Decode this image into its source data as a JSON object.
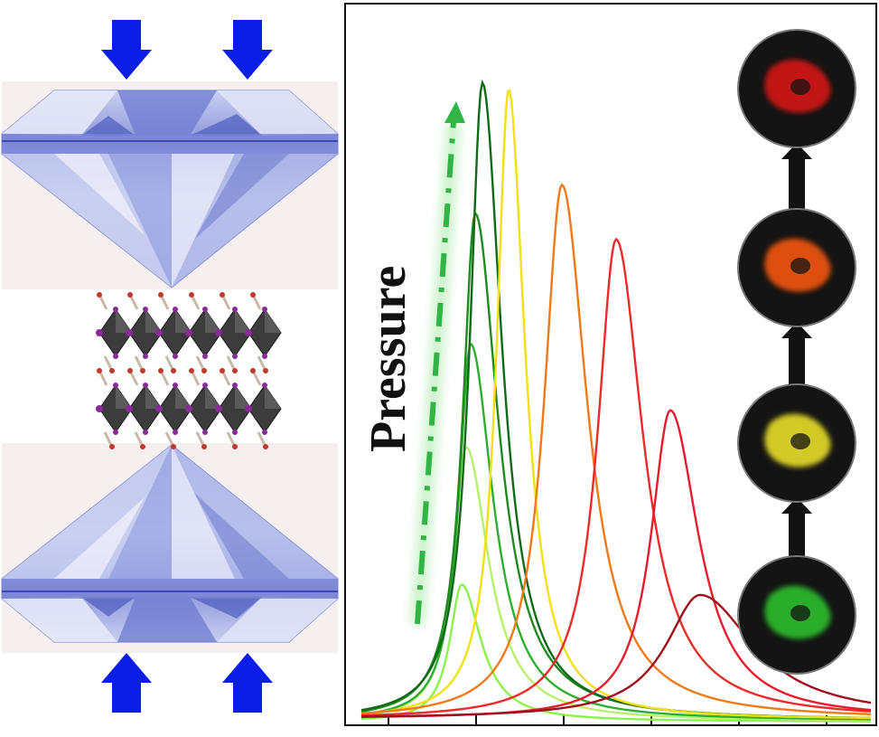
{
  "figure": {
    "pressure_label": "Pressure",
    "arrow_color_blue": "#0a1ee8",
    "arrow_color_pressure": "#3db84a",
    "diamond_colors": {
      "light": "#eef0fb",
      "mid": "#aab3e3",
      "dark": "#4a59c0",
      "bg": "#f5eeee"
    },
    "octahedron_color": "#3c3c3c",
    "halide_atom_color": "#8a2a9a",
    "image_icon": "microscope-photo",
    "pl_spectra": [
      {
        "color": "#8cf24a",
        "peak_level": 0.2
      },
      {
        "color": "#b8f06a",
        "peak_level": 0.4
      },
      {
        "color": "#2eae2e",
        "peak_level": 0.55
      },
      {
        "color": "#1f8a1f",
        "peak_level": 0.74
      },
      {
        "color": "#116b16",
        "peak_level": 0.93
      },
      {
        "color": "#f2e016",
        "peak_level": 0.92
      },
      {
        "color": "#f07a18",
        "peak_level": 0.78
      },
      {
        "color": "#ec2a2a",
        "peak_level": 0.7
      },
      {
        "color": "#e61c2e",
        "peak_level": 0.45
      },
      {
        "color": "#a0101c",
        "peak_level": 0.18
      }
    ],
    "photo_glow_colors": [
      "#e01818",
      "#ff5a10",
      "#f4ea2a",
      "#2fc82f"
    ]
  }
}
